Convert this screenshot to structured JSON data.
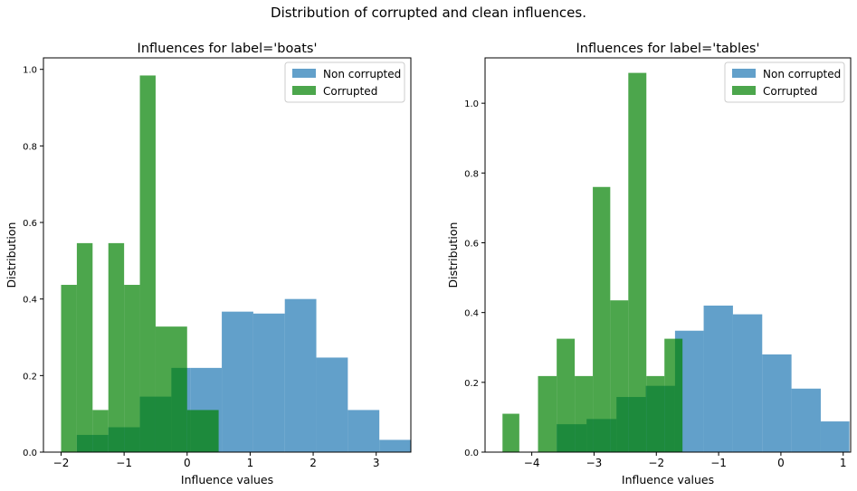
{
  "suptitle": "Distribution of corrupted and clean influences.",
  "chart_data": [
    {
      "type": "bar",
      "title": "Influences for label='boats'",
      "xlabel": "Influence values",
      "ylabel": "Distribution",
      "xlim": [
        -2.28,
        3.55
      ],
      "ylim": [
        0,
        1.03
      ],
      "xticks": [
        -2,
        -1,
        0,
        1,
        2,
        3
      ],
      "xtick_labels": [
        "−2",
        "−1",
        "0",
        "1",
        "2",
        "3"
      ],
      "yticks": [
        0.0,
        0.2,
        0.4,
        0.6,
        0.8,
        1.0
      ],
      "ytick_labels": [
        "0.0",
        "0.2",
        "0.4",
        "0.6",
        "0.8",
        "1.0"
      ],
      "legend": {
        "position": "top-right",
        "entries": [
          "Non corrupted",
          "Corrupted"
        ]
      },
      "series": [
        {
          "name": "Non corrupted",
          "color": "#1f77b4",
          "alpha": 0.7,
          "bin_edges": [
            -1.75,
            -1.25,
            -0.75,
            -0.25,
            0.05,
            0.55,
            1.05,
            1.55,
            2.05,
            2.55,
            3.05,
            3.55
          ],
          "values": [
            0.045,
            0.065,
            0.145,
            0.22,
            0.22,
            0.367,
            0.362,
            0.4,
            0.247,
            0.11,
            0.032
          ]
        },
        {
          "name": "Corrupted",
          "color": "#008000",
          "alpha": 0.7,
          "bin_edges": [
            -2.0,
            -1.75,
            -1.5,
            -1.25,
            -1.0,
            -0.75,
            -0.5,
            0.0,
            0.5
          ],
          "values": [
            0.437,
            0.546,
            0.11,
            0.546,
            0.437,
            0.984,
            0.328,
            0.11
          ]
        }
      ]
    },
    {
      "type": "bar",
      "title": "Influences for label='tables'",
      "xlabel": "Influence values",
      "ylabel": "Distribution",
      "xlim": [
        -4.75,
        1.12
      ],
      "ylim": [
        0,
        1.13
      ],
      "xticks": [
        -4,
        -3,
        -2,
        -1,
        0,
        1
      ],
      "xtick_labels": [
        "−4",
        "−3",
        "−2",
        "−1",
        "0",
        "1"
      ],
      "yticks": [
        0.0,
        0.2,
        0.4,
        0.6,
        0.8,
        1.0
      ],
      "ytick_labels": [
        "0.0",
        "0.2",
        "0.4",
        "0.6",
        "0.8",
        "1.0"
      ],
      "legend": {
        "position": "top-right",
        "entries": [
          "Non corrupted",
          "Corrupted"
        ]
      },
      "series": [
        {
          "name": "Non corrupted",
          "color": "#1f77b4",
          "alpha": 0.7,
          "bin_edges": [
            -3.6,
            -3.12,
            -2.64,
            -2.17,
            -1.7,
            -1.24,
            -0.77,
            -0.3,
            0.17,
            0.64,
            1.1
          ],
          "values": [
            0.08,
            0.095,
            0.158,
            0.19,
            0.348,
            0.42,
            0.395,
            0.28,
            0.182,
            0.088
          ]
        },
        {
          "name": "Corrupted",
          "color": "#008000",
          "alpha": 0.7,
          "bin_edges": [
            -4.47,
            -4.2,
            -3.9,
            -3.6,
            -3.31,
            -3.02,
            -2.74,
            -2.45,
            -2.16,
            -1.87,
            -1.58
          ],
          "values": [
            0.11,
            0.0,
            0.218,
            0.325,
            0.218,
            0.76,
            0.435,
            1.087,
            0.218,
            0.325
          ]
        }
      ]
    }
  ]
}
